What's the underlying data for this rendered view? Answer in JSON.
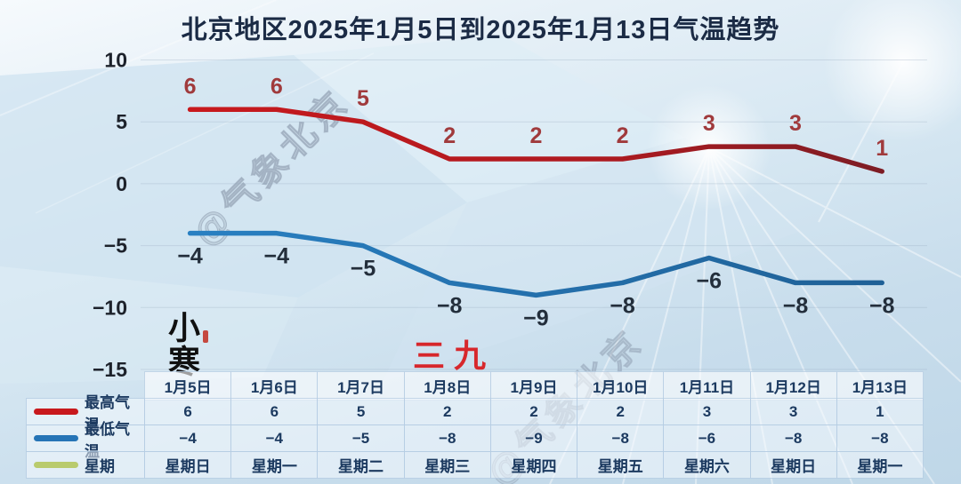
{
  "title": "北京地区2025年1月5日到2025年1月13日气温趋势",
  "watermark": "@气象北京",
  "annotations": {
    "solar_term": "小寒",
    "sanjiu": "三九"
  },
  "colors": {
    "high_line_start": "#c8191d",
    "high_line_end": "#7d1c24",
    "low_line": "#2574b6",
    "high_label": "#a03a3c",
    "low_label": "#232e3b",
    "week_swatch": "#b9cb6d",
    "grid": "#8fa3ba",
    "table_text": "#1c3a60"
  },
  "chart_data": {
    "type": "line",
    "title": "北京地区2025年1月5日到2025年1月13日气温趋势",
    "categories": [
      "1月5日",
      "1月6日",
      "1月7日",
      "1月8日",
      "1月9日",
      "1月10日",
      "1月11日",
      "1月12日",
      "1月13日"
    ],
    "series": [
      {
        "name": "最高气温",
        "color": "#c01b20",
        "values": [
          6,
          6,
          5,
          2,
          2,
          2,
          3,
          3,
          1
        ]
      },
      {
        "name": "最低气温",
        "color": "#2574b6",
        "values": [
          -4,
          -4,
          -5,
          -8,
          -9,
          -8,
          -6,
          -8,
          -8
        ]
      }
    ],
    "weekdays": {
      "name": "星期",
      "color": "#b9cb6d",
      "values": [
        "星期日",
        "星期一",
        "星期二",
        "星期三",
        "星期四",
        "星期五",
        "星期六",
        "星期日",
        "星期一"
      ]
    },
    "ylim": [
      -15,
      10
    ],
    "yticks": [
      10,
      5,
      0,
      -5,
      -10,
      -15
    ],
    "grid": true,
    "legend_position": "table-left",
    "xlabel": "",
    "ylabel": ""
  }
}
